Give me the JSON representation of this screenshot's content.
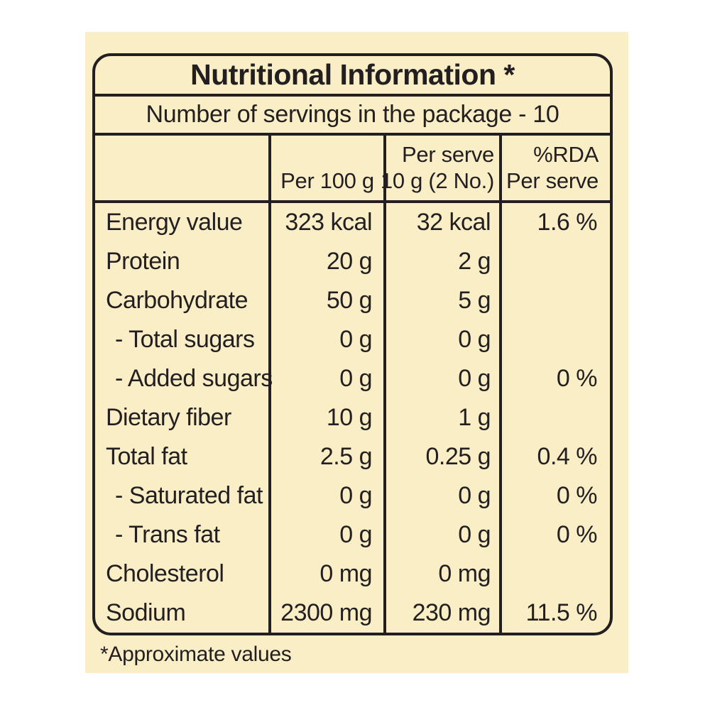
{
  "colors": {
    "page_background": "#FFFFFF",
    "panel_background": "#FAEEC7",
    "ink": "#231F20"
  },
  "title": "Nutritional Information *",
  "servings_line": "Number of servings in the package - 10",
  "table": {
    "headers": {
      "nutrient_blank": "",
      "per_100g": "Per 100 g",
      "per_serve_line1": "Per serve",
      "per_serve_line2": "10 g (2 No.)",
      "rda_line1": "%RDA",
      "rda_line2": "Per serve"
    },
    "rows": [
      {
        "label": "Energy value",
        "per_100g": "323 kcal",
        "per_serve": "32 kcal",
        "rda_per_serve": "1.6 %",
        "indent": false
      },
      {
        "label": "Protein",
        "per_100g": "20 g",
        "per_serve": "2 g",
        "rda_per_serve": "",
        "indent": false
      },
      {
        "label": "Carbohydrate",
        "per_100g": "50 g",
        "per_serve": "5 g",
        "rda_per_serve": "",
        "indent": false
      },
      {
        "label": "- Total sugars",
        "per_100g": "0 g",
        "per_serve": "0 g",
        "rda_per_serve": "",
        "indent": true
      },
      {
        "label": "- Added sugars",
        "per_100g": "0 g",
        "per_serve": "0 g",
        "rda_per_serve": "0 %",
        "indent": true
      },
      {
        "label": "Dietary fiber",
        "per_100g": "10 g",
        "per_serve": "1 g",
        "rda_per_serve": "",
        "indent": false
      },
      {
        "label": "Total fat",
        "per_100g": "2.5 g",
        "per_serve": "0.25 g",
        "rda_per_serve": "0.4 %",
        "indent": false
      },
      {
        "label": "- Saturated fat",
        "per_100g": "0 g",
        "per_serve": "0 g",
        "rda_per_serve": "0 %",
        "indent": true
      },
      {
        "label": "- Trans fat",
        "per_100g": "0 g",
        "per_serve": "0 g",
        "rda_per_serve": "0 %",
        "indent": true
      },
      {
        "label": "Cholesterol",
        "per_100g": "0 mg",
        "per_serve": "0 mg",
        "rda_per_serve": "",
        "indent": false
      },
      {
        "label": "Sodium",
        "per_100g": "2300 mg",
        "per_serve": "230 mg",
        "rda_per_serve": "11.5 %",
        "indent": false
      }
    ]
  },
  "footnote": "*Approximate values"
}
